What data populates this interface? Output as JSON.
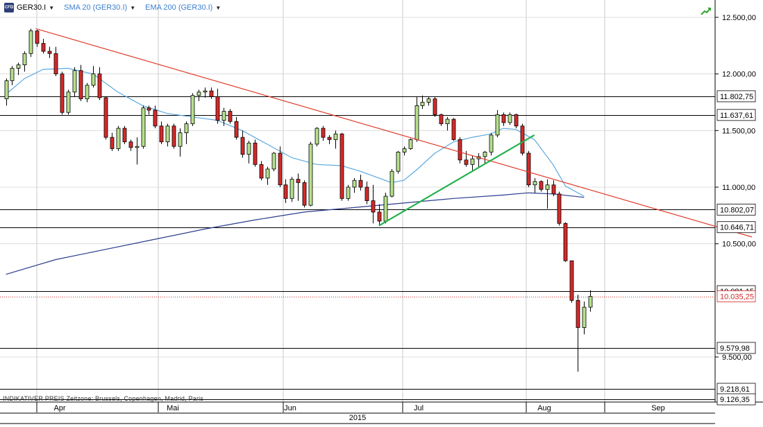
{
  "toolbar": {
    "instrument": "GER30.I",
    "indicator_1": "SMA 20 (GER30.I)",
    "indicator_2": "EMA 200 (GER30.I)",
    "cfd_icon_text": "CFD"
  },
  "footer": {
    "note": "INDIKATIVER PREIS   Zeitzone: Brussels, Copenhagen, Madrid, Paris"
  },
  "colors": {
    "up_candle": "#b5e08c",
    "down_candle": "#d42a2a",
    "sma": "#5aa9e0",
    "ema": "#2b3a8c",
    "trendline_down": "#e03a2a",
    "trendline_up": "#22b14c",
    "current_price": "#d42a2a"
  },
  "chart_data": {
    "type": "candlestick",
    "title": "GER30.I",
    "x_year_label": "2015",
    "x_ticks": [
      "Apr",
      "Mai",
      "Jun",
      "Jul",
      "Aug",
      "Sep"
    ],
    "ylim": [
      9100,
      12600
    ],
    "y_ticks": [
      "12.500,00",
      "12.000,00",
      "11.500,00",
      "11.000,00",
      "10.500,00",
      "9.500,00"
    ],
    "y_tick_values": [
      12500,
      12000,
      11500,
      11000,
      10500,
      9500
    ],
    "horizontal_levels": [
      {
        "label": "11.802,75",
        "value": 11802.75
      },
      {
        "label": "11.637,61",
        "value": 11637.61
      },
      {
        "label": "10.802,07",
        "value": 10802.07
      },
      {
        "label": "10.646,71",
        "value": 10646.71
      },
      {
        "label": "10.081,15",
        "value": 10081.15
      },
      {
        "label": "9.579,98",
        "value": 9579.98
      },
      {
        "label": "9.218,61",
        "value": 9218.61
      },
      {
        "label": "9.126,35",
        "value": 9126.35
      }
    ],
    "current_price": {
      "label": "10.035,25",
      "value": 10035.25
    },
    "candles": [
      [
        11780,
        11960,
        11720,
        11940
      ],
      [
        11940,
        12070,
        11900,
        12050
      ],
      [
        12050,
        12100,
        11990,
        12080
      ],
      [
        12080,
        12200,
        12020,
        12180
      ],
      [
        12180,
        12400,
        12150,
        12380
      ],
      [
        12380,
        12390,
        12240,
        12270
      ],
      [
        12270,
        12310,
        12180,
        12200
      ],
      [
        12200,
        12240,
        12140,
        12180
      ],
      [
        12180,
        12240,
        11980,
        12000
      ],
      [
        12000,
        12020,
        11640,
        11660
      ],
      [
        11660,
        11860,
        11640,
        11840
      ],
      [
        11840,
        12060,
        11800,
        12030
      ],
      [
        12030,
        12080,
        11760,
        11780
      ],
      [
        11780,
        11920,
        11750,
        11900
      ],
      [
        11900,
        12070,
        11880,
        12000
      ],
      [
        12000,
        12060,
        11770,
        11790
      ],
      [
        11790,
        11800,
        11420,
        11440
      ],
      [
        11440,
        11480,
        11320,
        11340
      ],
      [
        11340,
        11540,
        11320,
        11520
      ],
      [
        11520,
        11540,
        11380,
        11400
      ],
      [
        11400,
        11420,
        11320,
        11350
      ],
      [
        11350,
        11440,
        11200,
        11360
      ],
      [
        11360,
        11720,
        11340,
        11700
      ],
      [
        11700,
        11720,
        11640,
        11680
      ],
      [
        11680,
        11720,
        11520,
        11540
      ],
      [
        11540,
        11580,
        11380,
        11400
      ],
      [
        11400,
        11560,
        11360,
        11540
      ],
      [
        11540,
        11560,
        11340,
        11360
      ],
      [
        11360,
        11520,
        11270,
        11480
      ],
      [
        11480,
        11580,
        11380,
        11560
      ],
      [
        11560,
        11830,
        11540,
        11810
      ],
      [
        11810,
        11860,
        11760,
        11840
      ],
      [
        11840,
        11880,
        11790,
        11850
      ],
      [
        11850,
        11880,
        11780,
        11800
      ],
      [
        11800,
        11870,
        11560,
        11590
      ],
      [
        11590,
        11700,
        11540,
        11670
      ],
      [
        11670,
        11690,
        11560,
        11580
      ],
      [
        11580,
        11620,
        11420,
        11440
      ],
      [
        11440,
        11500,
        11260,
        11290
      ],
      [
        11290,
        11410,
        11210,
        11390
      ],
      [
        11390,
        11420,
        11180,
        11200
      ],
      [
        11200,
        11230,
        11060,
        11080
      ],
      [
        11080,
        11180,
        11020,
        11160
      ],
      [
        11160,
        11310,
        11140,
        11300
      ],
      [
        11300,
        11360,
        11000,
        11020
      ],
      [
        11020,
        11070,
        10860,
        10900
      ],
      [
        10900,
        11090,
        10870,
        11070
      ],
      [
        11070,
        11120,
        10880,
        11040
      ],
      [
        11040,
        11060,
        10820,
        10840
      ],
      [
        10840,
        11400,
        10830,
        11380
      ],
      [
        11380,
        11530,
        11360,
        11520
      ],
      [
        11520,
        11540,
        11410,
        11440
      ],
      [
        11440,
        11460,
        11380,
        11420
      ],
      [
        11420,
        11500,
        11340,
        11470
      ],
      [
        11470,
        11480,
        10880,
        10900
      ],
      [
        10900,
        11020,
        10880,
        11000
      ],
      [
        11000,
        11080,
        10950,
        11060
      ],
      [
        11060,
        11110,
        10970,
        11000
      ],
      [
        11000,
        11050,
        10850,
        10880
      ],
      [
        10880,
        11020,
        10680,
        10780
      ],
      [
        10780,
        10850,
        10670,
        10700
      ],
      [
        10700,
        10950,
        10680,
        10920
      ],
      [
        10920,
        11160,
        10910,
        11140
      ],
      [
        11140,
        11320,
        11120,
        11310
      ],
      [
        11310,
        11360,
        11280,
        11340
      ],
      [
        11340,
        11430,
        11330,
        11420
      ],
      [
        11420,
        11800,
        11400,
        11720
      ],
      [
        11720,
        11810,
        11690,
        11750
      ],
      [
        11750,
        11800,
        11720,
        11780
      ],
      [
        11780,
        11800,
        11620,
        11640
      ],
      [
        11640,
        11650,
        11540,
        11560
      ],
      [
        11560,
        11620,
        11500,
        11600
      ],
      [
        11600,
        11610,
        11410,
        11420
      ],
      [
        11420,
        11440,
        11210,
        11240
      ],
      [
        11240,
        11320,
        11180,
        11200
      ],
      [
        11200,
        11280,
        11150,
        11250
      ],
      [
        11250,
        11300,
        11180,
        11270
      ],
      [
        11270,
        11320,
        11200,
        11310
      ],
      [
        11310,
        11480,
        11280,
        11460
      ],
      [
        11460,
        11680,
        11440,
        11640
      ],
      [
        11640,
        11660,
        11540,
        11570
      ],
      [
        11570,
        11660,
        11550,
        11640
      ],
      [
        11640,
        11650,
        11520,
        11540
      ],
      [
        11540,
        11560,
        11280,
        11300
      ],
      [
        11300,
        11320,
        11000,
        11020
      ],
      [
        11020,
        11080,
        10950,
        11050
      ],
      [
        11050,
        11060,
        10960,
        10980
      ],
      [
        10980,
        11070,
        10810,
        11020
      ],
      [
        11020,
        11060,
        10920,
        10940
      ],
      [
        10940,
        10960,
        10660,
        10680
      ],
      [
        10680,
        10690,
        10340,
        10350
      ],
      [
        10350,
        10350,
        9980,
        10000
      ],
      [
        10000,
        10050,
        9370,
        9760
      ],
      [
        9760,
        9990,
        9700,
        9940
      ],
      [
        9940,
        10090,
        9900,
        10035
      ]
    ],
    "sma20": [
      [
        0,
        11820
      ],
      [
        3,
        11960
      ],
      [
        6,
        12040
      ],
      [
        10,
        12050
      ],
      [
        14,
        12000
      ],
      [
        18,
        11840
      ],
      [
        22,
        11720
      ],
      [
        26,
        11650
      ],
      [
        30,
        11620
      ],
      [
        34,
        11590
      ],
      [
        38,
        11500
      ],
      [
        42,
        11380
      ],
      [
        46,
        11260
      ],
      [
        50,
        11200
      ],
      [
        54,
        11190
      ],
      [
        57,
        11140
      ],
      [
        60,
        11080
      ],
      [
        62,
        11040
      ],
      [
        64,
        11060
      ],
      [
        66,
        11150
      ],
      [
        69,
        11300
      ],
      [
        72,
        11400
      ],
      [
        75,
        11440
      ],
      [
        78,
        11470
      ],
      [
        80,
        11520
      ],
      [
        82,
        11510
      ],
      [
        85,
        11420
      ],
      [
        88,
        11200
      ],
      [
        90,
        11010
      ],
      [
        93,
        10920
      ]
    ],
    "ema200": [
      [
        0,
        10230
      ],
      [
        8,
        10360
      ],
      [
        16,
        10450
      ],
      [
        24,
        10540
      ],
      [
        32,
        10630
      ],
      [
        40,
        10710
      ],
      [
        48,
        10780
      ],
      [
        56,
        10820
      ],
      [
        64,
        10860
      ],
      [
        72,
        10900
      ],
      [
        80,
        10930
      ],
      [
        84,
        10950
      ],
      [
        88,
        10940
      ],
      [
        93,
        10910
      ]
    ],
    "trend_down": [
      [
        4.8,
        12400
      ],
      [
        120,
        10560
      ]
    ],
    "trend_up": [
      [
        60,
        10660
      ],
      [
        85,
        11460
      ]
    ]
  }
}
